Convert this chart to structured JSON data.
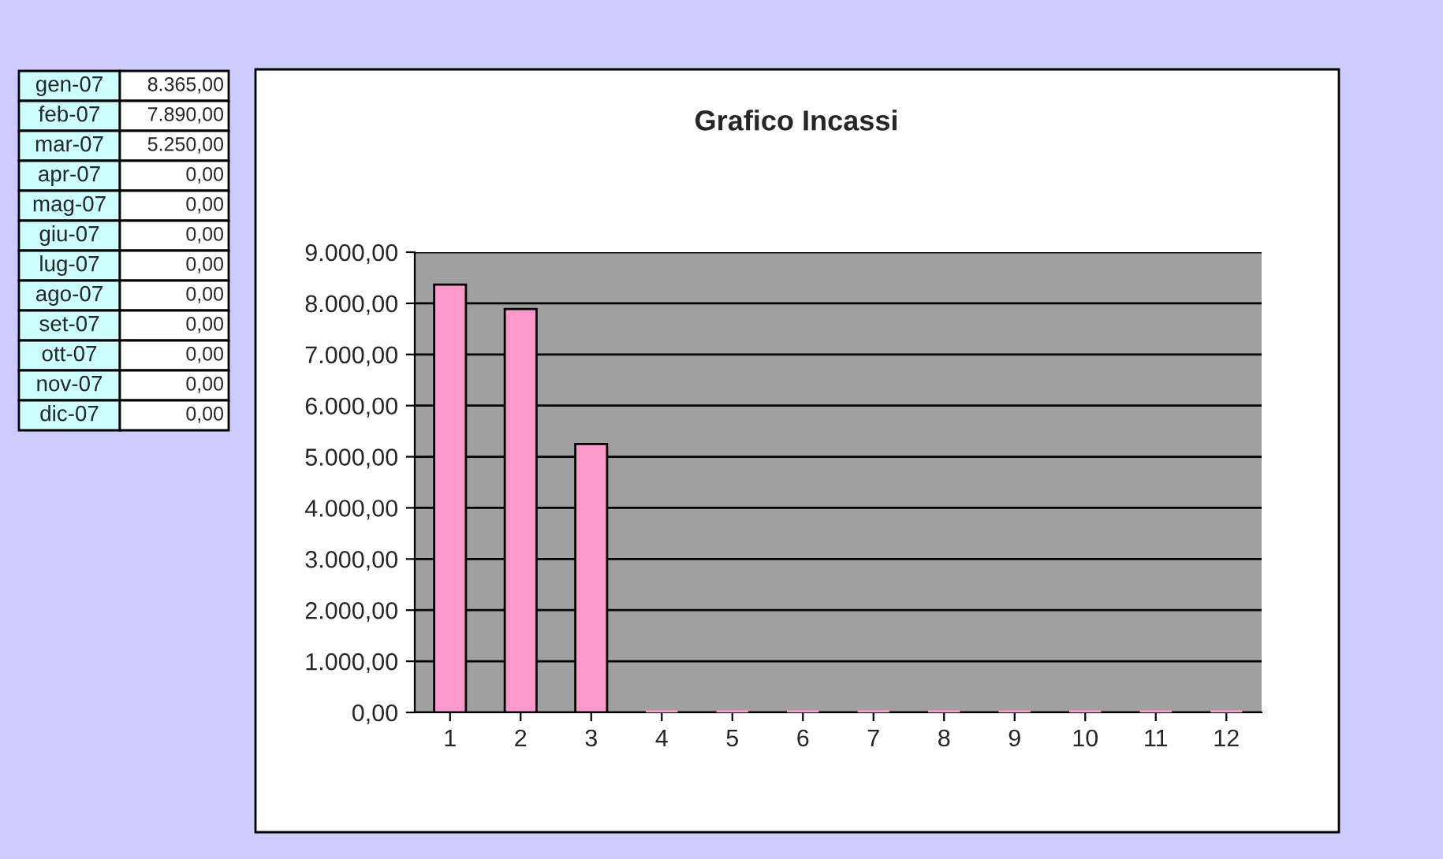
{
  "chart_data": [
    {
      "type": "other",
      "annotations": [
        "gen-07",
        "8.365,00",
        "feb-07",
        "7.890,00",
        "mar-07",
        "5.250,00",
        "apr-07",
        "0,00",
        "mag-07",
        "0,00",
        "giu-07",
        "0,00",
        "lug-07",
        "0,00",
        "ago-07",
        "0,00",
        "set-07",
        "0,00",
        "ott-07",
        "0,00",
        "nov-07",
        "0,00",
        "dic-07",
        "0,00"
      ]
    },
    {
      "type": "bar",
      "title": "Grafico Incassi",
      "categories": [
        "1",
        "2",
        "3",
        "4",
        "5",
        "6",
        "7",
        "8",
        "9",
        "10",
        "11",
        "12"
      ],
      "values": [
        8365,
        7890,
        5250,
        0,
        0,
        0,
        0,
        0,
        0,
        0,
        0,
        0
      ],
      "color": "#ff99cc",
      "ylim": [
        0,
        9000
      ],
      "yticks": [
        {
          "value": 0,
          "label": "0,00"
        },
        {
          "value": 1000,
          "label": "1.000,00"
        },
        {
          "value": 2000,
          "label": "2.000,00"
        },
        {
          "value": 3000,
          "label": "3.000,00"
        },
        {
          "value": 4000,
          "label": "4.000,00"
        },
        {
          "value": 5000,
          "label": "5.000,00"
        },
        {
          "value": 6000,
          "label": "6.000,00"
        },
        {
          "value": 7000,
          "label": "7.000,00"
        },
        {
          "value": 8000,
          "label": "8.000,00"
        },
        {
          "value": 9000,
          "label": "9.000,00"
        }
      ],
      "grid": "y"
    }
  ]
}
